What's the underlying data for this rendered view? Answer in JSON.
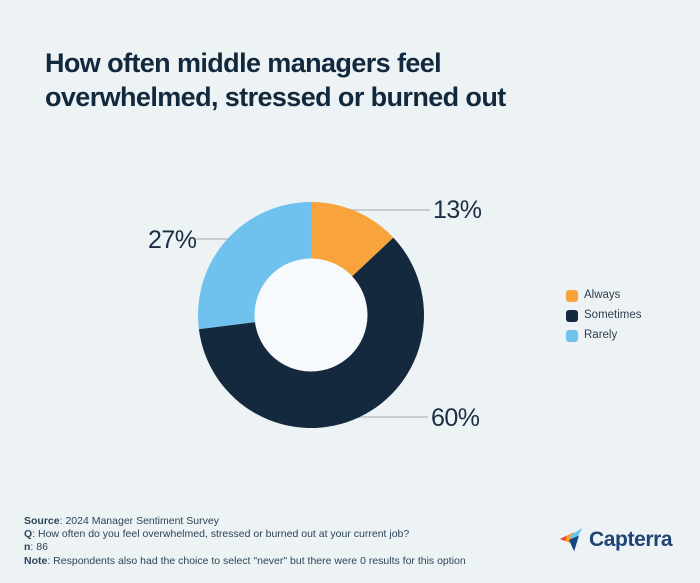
{
  "page": {
    "background_color": "#EDF2F5"
  },
  "header": {
    "title_lines": [
      "How often middle managers feel",
      "overwhelmed, stressed or burned out"
    ],
    "title_color": "#12283D"
  },
  "chart_data": {
    "type": "pie",
    "subtype": "donut",
    "title": "How often middle managers feel overwhelmed, stressed or burned out",
    "slices": [
      {
        "name": "Always",
        "value": 13,
        "label": "13%",
        "color": "#F8A33B"
      },
      {
        "name": "Sometimes",
        "value": 60,
        "label": "60%",
        "color": "#14293D"
      },
      {
        "name": "Rarely",
        "value": 27,
        "label": "27%",
        "color": "#6FC2EE"
      }
    ],
    "start_angle_deg": 0,
    "clockwise": true,
    "hole_color": "#F6FAFC",
    "leader_line_color": "#C9CDD0",
    "legend": {
      "position": "right",
      "items": [
        "Always",
        "Sometimes",
        "Rarely"
      ]
    }
  },
  "footer": {
    "lines": [
      {
        "label": "Source",
        "text": ": 2024 Manager Sentiment Survey"
      },
      {
        "label": "Q",
        "text": ": How often do you feel overwhelmed, stressed or burned out at your current job?"
      },
      {
        "label": "n",
        "text": ": 86"
      },
      {
        "label": "Note",
        "text": ": Respondents also had the choice to select \"never\" but there were 0 results for this option"
      }
    ]
  },
  "brand": {
    "name": "Capterra",
    "wordmark_color": "#1E4476",
    "icon_colors": {
      "light_blue": "#68C5ED",
      "dark_blue": "#11497F",
      "orange": "#FF9D28",
      "red": "#E0483C"
    }
  }
}
